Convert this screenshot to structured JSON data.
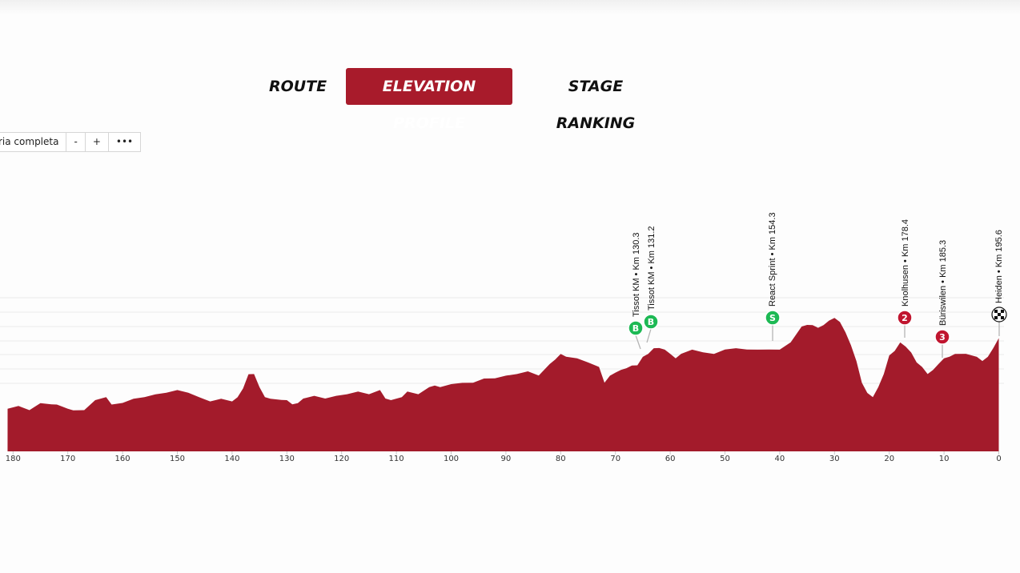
{
  "tabs": [
    {
      "label": "ROUTE",
      "active": false
    },
    {
      "label": "ELEVATION PROFILE",
      "active": true
    },
    {
      "label": "STAGE RANKING",
      "active": false
    }
  ],
  "toolbar": {
    "full_view_label": "ria completa",
    "zoom_out_label": "-",
    "zoom_in_label": "+",
    "more_label": "•••"
  },
  "colors": {
    "accent": "#a81b2b",
    "profile_fill": "#a31b2b",
    "sprint_marker": "#1db954",
    "climb_marker": "#c0152f"
  },
  "chart_data": {
    "type": "area",
    "x_axis": {
      "label": "",
      "range": [
        180,
        0
      ],
      "reversed": true,
      "ticks": [
        180,
        170,
        160,
        150,
        140,
        130,
        120,
        110,
        100,
        90,
        80,
        70,
        60,
        50,
        40,
        30,
        20,
        10,
        0
      ]
    },
    "y_axis": {
      "label": "",
      "ticks_visible": false
    },
    "grid": true,
    "series": [
      {
        "x": [
          181,
          179,
          177,
          175,
          173,
          172,
          170,
          169,
          167,
          165,
          163,
          162,
          160,
          158,
          156,
          154,
          152,
          150,
          148,
          146,
          144,
          142,
          140,
          139,
          138,
          137,
          136,
          135,
          134,
          133,
          131,
          130,
          129,
          128,
          127,
          125,
          123,
          121,
          119,
          117,
          115,
          113,
          112,
          111,
          109,
          108,
          106,
          104,
          103,
          102,
          100,
          98,
          96,
          94,
          92,
          90,
          88,
          86,
          84,
          82,
          81,
          80,
          79,
          77,
          75,
          73,
          72,
          71,
          70,
          69,
          68,
          67,
          66,
          65,
          64,
          63,
          62,
          61,
          60,
          59,
          58,
          56,
          54,
          52,
          50,
          48,
          46,
          44,
          42,
          40,
          38,
          36,
          35,
          34,
          33,
          32,
          31,
          30,
          29,
          28,
          27,
          26,
          25,
          24,
          23,
          22,
          21,
          20,
          19,
          18,
          17,
          16,
          15,
          14,
          13,
          12,
          11,
          10,
          9,
          8,
          6,
          4,
          3,
          2,
          1,
          0
        ],
        "y": [
          30,
          31,
          29,
          33,
          33,
          32,
          30,
          28,
          29,
          35,
          38,
          32,
          34,
          36,
          38,
          39,
          41,
          42,
          41,
          37,
          35,
          36,
          35,
          37,
          44,
          53,
          54,
          44,
          38,
          36,
          36,
          35,
          33,
          33,
          37,
          38,
          37,
          38,
          40,
          41,
          40,
          42,
          37,
          35,
          38,
          41,
          40,
          44,
          46,
          44,
          47,
          47,
          48,
          50,
          51,
          52,
          54,
          55,
          53,
          60,
          64,
          67,
          66,
          64,
          62,
          58,
          48,
          52,
          55,
          56,
          58,
          59,
          60,
          65,
          68,
          71,
          72,
          70,
          68,
          64,
          68,
          70,
          69,
          67,
          71,
          71,
          71,
          70,
          71,
          70,
          76,
          86,
          88,
          87,
          86,
          87,
          91,
          92,
          90,
          82,
          74,
          62,
          48,
          40,
          38,
          44,
          54,
          66,
          70,
          75,
          73,
          68,
          62,
          58,
          54,
          56,
          61,
          64,
          66,
          67,
          68,
          65,
          63,
          65,
          72,
          78
        ]
      }
    ],
    "waypoints": [
      {
        "label": "Tissot KM • Km 130.3",
        "x": 65.3,
        "marker": "B",
        "type": "sprint"
      },
      {
        "label": "Tissot KM • Km 131.2",
        "x": 64.4,
        "marker": "B",
        "type": "sprint"
      },
      {
        "label": "React Sprint • Km 154.3",
        "x": 41.3,
        "marker": "S",
        "type": "sprint"
      },
      {
        "label": "Knolhusen • Km 178.4",
        "x": 17.2,
        "marker": "2",
        "type": "climb"
      },
      {
        "label": "Büriswilen • Km 185.3",
        "x": 10.3,
        "marker": "3",
        "type": "climb"
      },
      {
        "label": "Heiden • Km 195.6",
        "x": 0,
        "marker": "finish",
        "type": "finish"
      }
    ]
  }
}
